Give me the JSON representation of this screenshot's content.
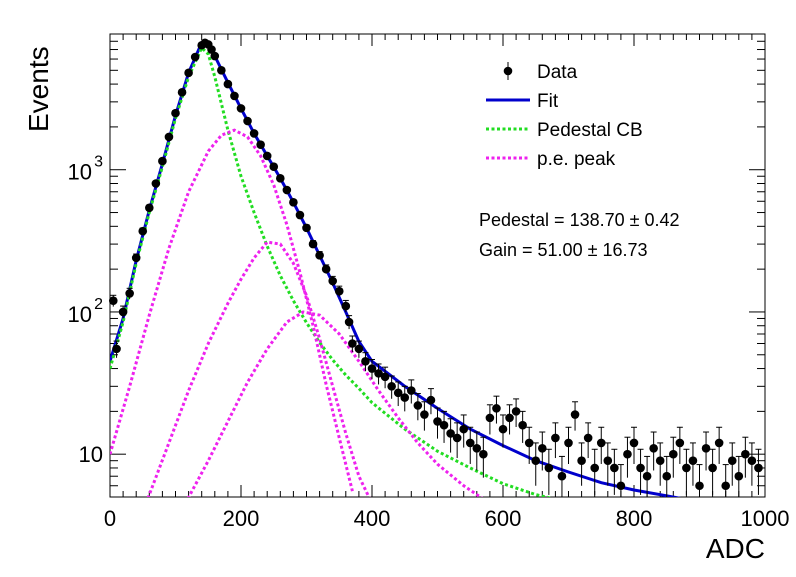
{
  "chart_data": {
    "type": "scatter",
    "xlabel": "ADC",
    "ylabel": "Events",
    "xlim": [
      0,
      1000
    ],
    "ylim": [
      5,
      9000
    ],
    "yscale": "log",
    "grid": false,
    "legend_position": "top-right",
    "x_ticks": [
      {
        "value": 0,
        "label": "0"
      },
      {
        "value": 200,
        "label": "200"
      },
      {
        "value": 400,
        "label": "400"
      },
      {
        "value": 600,
        "label": "600"
      },
      {
        "value": 800,
        "label": "800"
      },
      {
        "value": 1000,
        "label": "1000"
      }
    ],
    "y_ticks": [
      {
        "value": 10,
        "base": "10",
        "exp": ""
      },
      {
        "value": 100,
        "base": "10",
        "exp": "2"
      },
      {
        "value": 1000,
        "base": "10",
        "exp": "3"
      }
    ],
    "legend": [
      {
        "label": "Data",
        "kind": "marker",
        "color": "#000000"
      },
      {
        "label": "Fit",
        "kind": "solid",
        "color": "#0000cc"
      },
      {
        "label": "Pedestal CB",
        "kind": "dotted",
        "color": "#22dd22"
      },
      {
        "label": "p.e. peak",
        "kind": "dotted",
        "color": "#ee22ee"
      }
    ],
    "annotations": [
      {
        "text": "Pedestal = 138.70",
        "err": "0.42"
      },
      {
        "text": "Gain = 51.00",
        "err": "16.73"
      }
    ],
    "series": [
      {
        "name": "Data",
        "style": "points-with-errorbars",
        "color": "#000000",
        "points": [
          [
            5,
            120
          ],
          [
            10,
            55
          ],
          [
            20,
            100
          ],
          [
            30,
            135
          ],
          [
            40,
            240
          ],
          [
            50,
            370
          ],
          [
            60,
            540
          ],
          [
            70,
            800
          ],
          [
            80,
            1150
          ],
          [
            90,
            1700
          ],
          [
            100,
            2500
          ],
          [
            110,
            3500
          ],
          [
            120,
            4800
          ],
          [
            130,
            6200
          ],
          [
            140,
            7500
          ],
          [
            145,
            7800
          ],
          [
            150,
            7600
          ],
          [
            155,
            7000
          ],
          [
            160,
            6300
          ],
          [
            170,
            5000
          ],
          [
            180,
            4000
          ],
          [
            190,
            3300
          ],
          [
            200,
            2700
          ],
          [
            210,
            2200
          ],
          [
            220,
            1800
          ],
          [
            230,
            1500
          ],
          [
            240,
            1250
          ],
          [
            250,
            1050
          ],
          [
            260,
            870
          ],
          [
            270,
            720
          ],
          [
            280,
            590
          ],
          [
            290,
            480
          ],
          [
            300,
            390
          ],
          [
            310,
            300
          ],
          [
            320,
            250
          ],
          [
            330,
            200
          ],
          [
            340,
            165
          ],
          [
            350,
            140
          ],
          [
            360,
            110
          ],
          [
            365,
            85
          ],
          [
            370,
            60
          ],
          [
            380,
            55
          ],
          [
            390,
            45
          ],
          [
            400,
            40
          ],
          [
            410,
            37
          ],
          [
            420,
            35
          ],
          [
            430,
            30
          ],
          [
            440,
            27
          ],
          [
            450,
            25
          ],
          [
            460,
            28
          ],
          [
            470,
            22
          ],
          [
            480,
            19
          ],
          [
            490,
            24
          ],
          [
            500,
            17
          ],
          [
            510,
            16
          ],
          [
            520,
            14
          ],
          [
            530,
            13
          ],
          [
            540,
            15
          ],
          [
            550,
            12
          ],
          [
            560,
            11
          ],
          [
            570,
            10
          ],
          [
            580,
            18
          ],
          [
            590,
            21
          ],
          [
            600,
            15
          ],
          [
            610,
            18
          ],
          [
            620,
            20
          ],
          [
            630,
            16
          ],
          [
            640,
            12
          ],
          [
            650,
            9
          ],
          [
            660,
            11
          ],
          [
            670,
            8
          ],
          [
            680,
            13
          ],
          [
            690,
            7
          ],
          [
            700,
            12
          ],
          [
            710,
            19
          ],
          [
            720,
            9
          ],
          [
            730,
            13
          ],
          [
            740,
            8
          ],
          [
            750,
            12
          ],
          [
            760,
            9
          ],
          [
            770,
            8
          ],
          [
            780,
            6
          ],
          [
            790,
            10
          ],
          [
            800,
            12
          ],
          [
            810,
            8
          ],
          [
            820,
            7
          ],
          [
            830,
            11
          ],
          [
            840,
            9
          ],
          [
            850,
            7
          ],
          [
            860,
            10
          ],
          [
            870,
            12
          ],
          [
            880,
            8
          ],
          [
            890,
            9
          ],
          [
            900,
            6
          ],
          [
            910,
            11
          ],
          [
            920,
            8
          ],
          [
            930,
            12
          ],
          [
            940,
            6
          ],
          [
            950,
            9
          ],
          [
            960,
            7
          ],
          [
            970,
            10
          ],
          [
            980,
            9
          ],
          [
            990,
            8
          ]
        ]
      },
      {
        "name": "Fit",
        "style": "solid",
        "color": "#0000cc",
        "points": [
          [
            0,
            45
          ],
          [
            20,
            90
          ],
          [
            40,
            230
          ],
          [
            60,
            520
          ],
          [
            80,
            1100
          ],
          [
            100,
            2400
          ],
          [
            120,
            4800
          ],
          [
            140,
            7800
          ],
          [
            150,
            7700
          ],
          [
            160,
            6300
          ],
          [
            180,
            4100
          ],
          [
            200,
            2700
          ],
          [
            220,
            1800
          ],
          [
            240,
            1250
          ],
          [
            260,
            870
          ],
          [
            280,
            590
          ],
          [
            300,
            390
          ],
          [
            320,
            250
          ],
          [
            340,
            160
          ],
          [
            360,
            100
          ],
          [
            380,
            62
          ],
          [
            400,
            45
          ],
          [
            450,
            30
          ],
          [
            500,
            21
          ],
          [
            550,
            15
          ],
          [
            600,
            11.5
          ],
          [
            650,
            9
          ],
          [
            700,
            7.5
          ],
          [
            750,
            6.3
          ],
          [
            800,
            5.6
          ],
          [
            850,
            5.1
          ],
          [
            880,
            4.8
          ]
        ]
      },
      {
        "name": "Pedestal CB",
        "style": "dotted",
        "color": "#22dd22",
        "points": [
          [
            0,
            40
          ],
          [
            20,
            85
          ],
          [
            40,
            220
          ],
          [
            60,
            500
          ],
          [
            80,
            1050
          ],
          [
            100,
            2300
          ],
          [
            120,
            4500
          ],
          [
            140,
            7200
          ],
          [
            150,
            6500
          ],
          [
            160,
            4500
          ],
          [
            180,
            1900
          ],
          [
            200,
            900
          ],
          [
            220,
            500
          ],
          [
            240,
            290
          ],
          [
            260,
            180
          ],
          [
            280,
            120
          ],
          [
            300,
            84
          ],
          [
            320,
            61
          ],
          [
            340,
            46
          ],
          [
            360,
            36
          ],
          [
            380,
            29
          ],
          [
            400,
            23
          ],
          [
            450,
            15
          ],
          [
            500,
            10.5
          ],
          [
            550,
            8
          ],
          [
            600,
            6.2
          ],
          [
            650,
            5.2
          ],
          [
            690,
            4.7
          ]
        ]
      },
      {
        "name": "p.e. peak",
        "style": "dotted",
        "color": "#ee22ee",
        "points": [
          [
            0,
            10
          ],
          [
            30,
            30
          ],
          [
            60,
            95
          ],
          [
            90,
            280
          ],
          [
            120,
            700
          ],
          [
            150,
            1350
          ],
          [
            170,
            1750
          ],
          [
            190,
            1900
          ],
          [
            210,
            1700
          ],
          [
            230,
            1250
          ],
          [
            250,
            780
          ],
          [
            270,
            410
          ],
          [
            290,
            190
          ],
          [
            310,
            80
          ],
          [
            330,
            31
          ],
          [
            350,
            13
          ],
          [
            370,
            5.5
          ]
        ]
      },
      {
        "name": "p.e. peak",
        "style": "dotted",
        "color": "#ee22ee",
        "points": [
          [
            55,
            4.5
          ],
          [
            90,
            12
          ],
          [
            120,
            28
          ],
          [
            150,
            60
          ],
          [
            180,
            115
          ],
          [
            200,
            170
          ],
          [
            220,
            240
          ],
          [
            240,
            310
          ],
          [
            260,
            300
          ],
          [
            280,
            220
          ],
          [
            300,
            130
          ],
          [
            320,
            65
          ],
          [
            340,
            30
          ],
          [
            360,
            14
          ],
          [
            380,
            7
          ],
          [
            400,
            4.5
          ]
        ]
      },
      {
        "name": "p.e. peak",
        "style": "dotted",
        "color": "#ee22ee",
        "points": [
          [
            115,
            4.5
          ],
          [
            150,
            9
          ],
          [
            180,
            17
          ],
          [
            210,
            32
          ],
          [
            240,
            55
          ],
          [
            270,
            85
          ],
          [
            295,
            100
          ],
          [
            320,
            95
          ],
          [
            350,
            70
          ],
          [
            380,
            45
          ],
          [
            410,
            28
          ],
          [
            440,
            18
          ],
          [
            470,
            12
          ],
          [
            500,
            8.5
          ],
          [
            540,
            6
          ],
          [
            580,
            4.5
          ]
        ]
      }
    ]
  }
}
